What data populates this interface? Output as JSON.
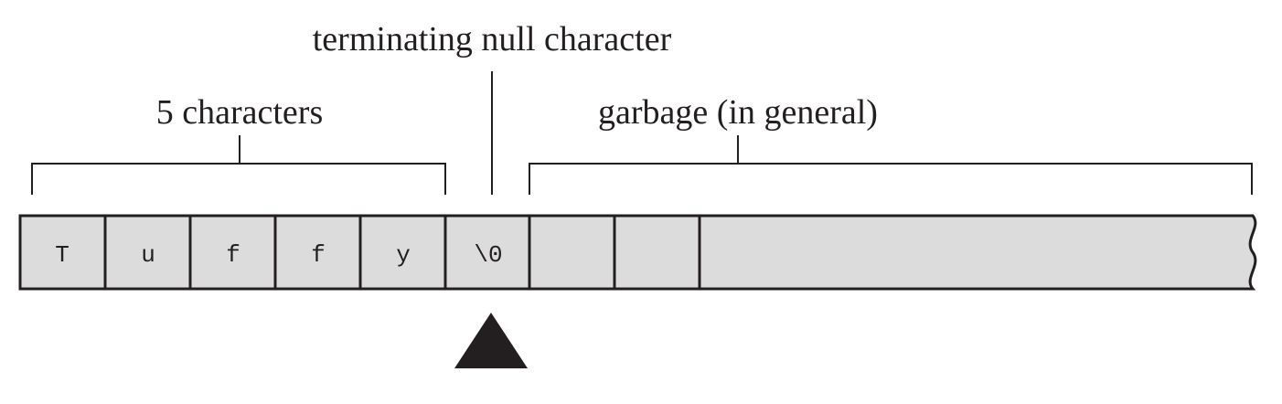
{
  "labels": {
    "terminator": "terminating null character",
    "characters": "5 characters",
    "garbage": "garbage (in general)"
  },
  "cells": [
    "T",
    "u",
    "f",
    "f",
    "y",
    "\\0",
    "",
    ""
  ],
  "colors": {
    "cell_fill": "#dcdcdc",
    "ink": "#231f20"
  }
}
